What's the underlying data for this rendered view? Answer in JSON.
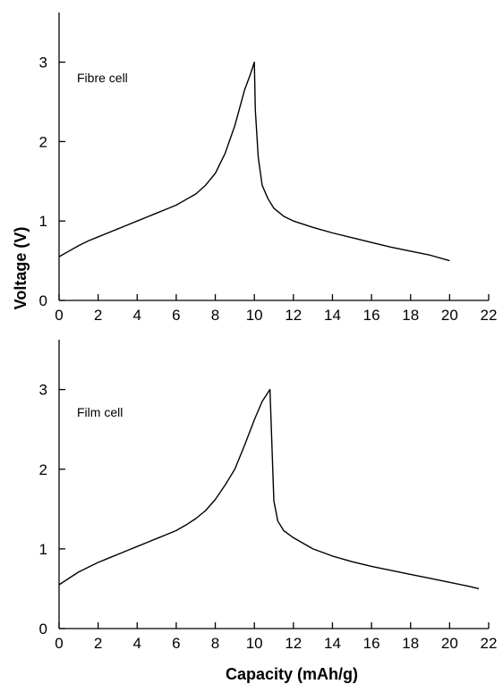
{
  "chart_data": [
    {
      "type": "line",
      "title": "",
      "annotation": "Fibre cell",
      "xlabel": "Capacity (mAh/g)",
      "ylabel": "Voltage (V)",
      "xlim": [
        0,
        22
      ],
      "ylim": [
        0,
        3.4
      ],
      "xticks": [
        "0",
        "2",
        "4",
        "6",
        "8",
        "10",
        "12",
        "14",
        "16",
        "18",
        "20",
        "22"
      ],
      "yticks": [
        "0",
        "1",
        "2",
        "3"
      ],
      "grid": false,
      "color": "#000000",
      "series": [
        {
          "points": [
            [
              0.0,
              0.55
            ],
            [
              0.5,
              0.62
            ],
            [
              1.0,
              0.69
            ],
            [
              1.5,
              0.75
            ],
            [
              2.0,
              0.8
            ],
            [
              2.5,
              0.85
            ],
            [
              3.0,
              0.9
            ],
            [
              3.5,
              0.95
            ],
            [
              4.0,
              1.0
            ],
            [
              4.5,
              1.05
            ],
            [
              5.0,
              1.1
            ],
            [
              5.5,
              1.15
            ],
            [
              6.0,
              1.2
            ],
            [
              6.5,
              1.27
            ],
            [
              7.0,
              1.34
            ],
            [
              7.5,
              1.45
            ],
            [
              8.0,
              1.6
            ],
            [
              8.5,
              1.85
            ],
            [
              9.0,
              2.2
            ],
            [
              9.5,
              2.65
            ],
            [
              9.8,
              2.85
            ],
            [
              10.0,
              3.0
            ],
            [
              10.05,
              2.4
            ],
            [
              10.2,
              1.8
            ],
            [
              10.4,
              1.45
            ],
            [
              10.7,
              1.28
            ],
            [
              11.0,
              1.16
            ],
            [
              11.5,
              1.06
            ],
            [
              12.0,
              1.0
            ],
            [
              13.0,
              0.92
            ],
            [
              14.0,
              0.85
            ],
            [
              15.0,
              0.79
            ],
            [
              16.0,
              0.73
            ],
            [
              17.0,
              0.67
            ],
            [
              18.0,
              0.62
            ],
            [
              19.0,
              0.57
            ],
            [
              20.0,
              0.5
            ]
          ]
        }
      ]
    },
    {
      "type": "line",
      "title": "",
      "annotation": "Film cell",
      "xlabel": "Capacity (mAh/g)",
      "ylabel": "Voltage (V)",
      "xlim": [
        0,
        22
      ],
      "ylim": [
        0,
        3.4
      ],
      "xticks": [
        "0",
        "2",
        "4",
        "6",
        "8",
        "10",
        "12",
        "14",
        "16",
        "18",
        "20",
        "22"
      ],
      "yticks": [
        "0",
        "1",
        "2",
        "3"
      ],
      "grid": false,
      "color": "#000000",
      "series": [
        {
          "points": [
            [
              0.0,
              0.55
            ],
            [
              0.5,
              0.63
            ],
            [
              1.0,
              0.71
            ],
            [
              1.5,
              0.77
            ],
            [
              2.0,
              0.83
            ],
            [
              2.5,
              0.88
            ],
            [
              3.0,
              0.93
            ],
            [
              3.5,
              0.98
            ],
            [
              4.0,
              1.03
            ],
            [
              4.5,
              1.08
            ],
            [
              5.0,
              1.13
            ],
            [
              5.5,
              1.18
            ],
            [
              6.0,
              1.23
            ],
            [
              6.5,
              1.3
            ],
            [
              7.0,
              1.38
            ],
            [
              7.5,
              1.48
            ],
            [
              8.0,
              1.62
            ],
            [
              8.5,
              1.8
            ],
            [
              9.0,
              2.0
            ],
            [
              9.5,
              2.3
            ],
            [
              10.0,
              2.62
            ],
            [
              10.4,
              2.85
            ],
            [
              10.8,
              3.0
            ],
            [
              10.9,
              2.3
            ],
            [
              11.0,
              1.6
            ],
            [
              11.2,
              1.35
            ],
            [
              11.5,
              1.23
            ],
            [
              12.0,
              1.14
            ],
            [
              12.5,
              1.07
            ],
            [
              13.0,
              1.0
            ],
            [
              14.0,
              0.91
            ],
            [
              15.0,
              0.84
            ],
            [
              16.0,
              0.78
            ],
            [
              17.0,
              0.73
            ],
            [
              18.0,
              0.68
            ],
            [
              19.0,
              0.63
            ],
            [
              20.0,
              0.58
            ],
            [
              21.0,
              0.53
            ],
            [
              21.5,
              0.5
            ]
          ]
        }
      ]
    }
  ]
}
